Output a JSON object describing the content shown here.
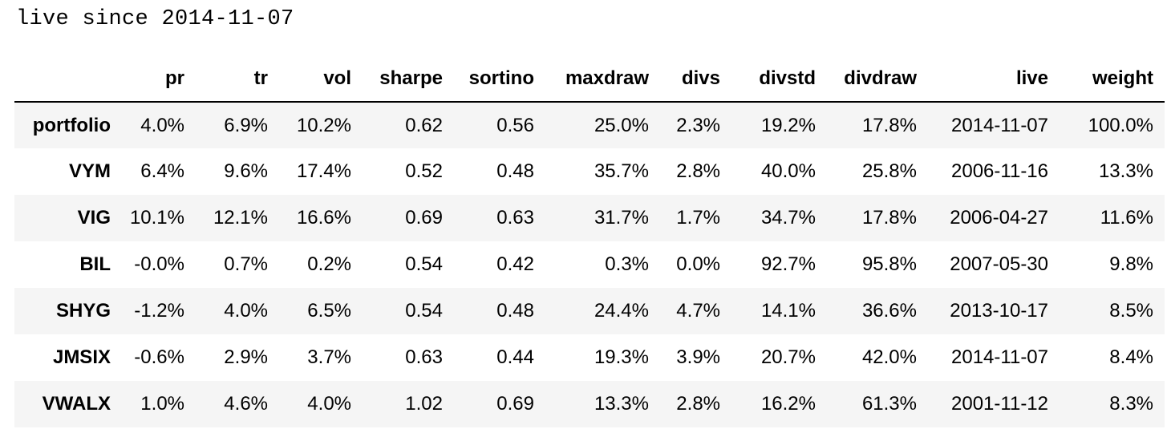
{
  "caption": "live since 2014-11-07",
  "table": {
    "index_header": "",
    "columns": [
      "pr",
      "tr",
      "vol",
      "sharpe",
      "sortino",
      "maxdraw",
      "divs",
      "divstd",
      "divdraw",
      "live",
      "weight"
    ],
    "rows": [
      {
        "name": "portfolio",
        "values": [
          "4.0%",
          "6.9%",
          "10.2%",
          "0.62",
          "0.56",
          "25.0%",
          "2.3%",
          "19.2%",
          "17.8%",
          "2014-11-07",
          "100.0%"
        ]
      },
      {
        "name": "VYM",
        "values": [
          "6.4%",
          "9.6%",
          "17.4%",
          "0.52",
          "0.48",
          "35.7%",
          "2.8%",
          "40.0%",
          "25.8%",
          "2006-11-16",
          "13.3%"
        ]
      },
      {
        "name": "VIG",
        "values": [
          "10.1%",
          "12.1%",
          "16.6%",
          "0.69",
          "0.63",
          "31.7%",
          "1.7%",
          "34.7%",
          "17.8%",
          "2006-04-27",
          "11.6%"
        ]
      },
      {
        "name": "BIL",
        "values": [
          "-0.0%",
          "0.7%",
          "0.2%",
          "0.54",
          "0.42",
          "0.3%",
          "0.0%",
          "92.7%",
          "95.8%",
          "2007-05-30",
          "9.8%"
        ]
      },
      {
        "name": "SHYG",
        "values": [
          "-1.2%",
          "4.0%",
          "6.5%",
          "0.54",
          "0.48",
          "24.4%",
          "4.7%",
          "14.1%",
          "36.6%",
          "2013-10-17",
          "8.5%"
        ]
      },
      {
        "name": "JMSIX",
        "values": [
          "-0.6%",
          "2.9%",
          "3.7%",
          "0.63",
          "0.44",
          "19.3%",
          "3.9%",
          "20.7%",
          "42.0%",
          "2014-11-07",
          "8.4%"
        ]
      },
      {
        "name": "VWALX",
        "values": [
          "1.0%",
          "4.6%",
          "4.0%",
          "1.02",
          "0.69",
          "13.3%",
          "2.8%",
          "16.2%",
          "61.3%",
          "2001-11-12",
          "8.3%"
        ]
      }
    ]
  }
}
